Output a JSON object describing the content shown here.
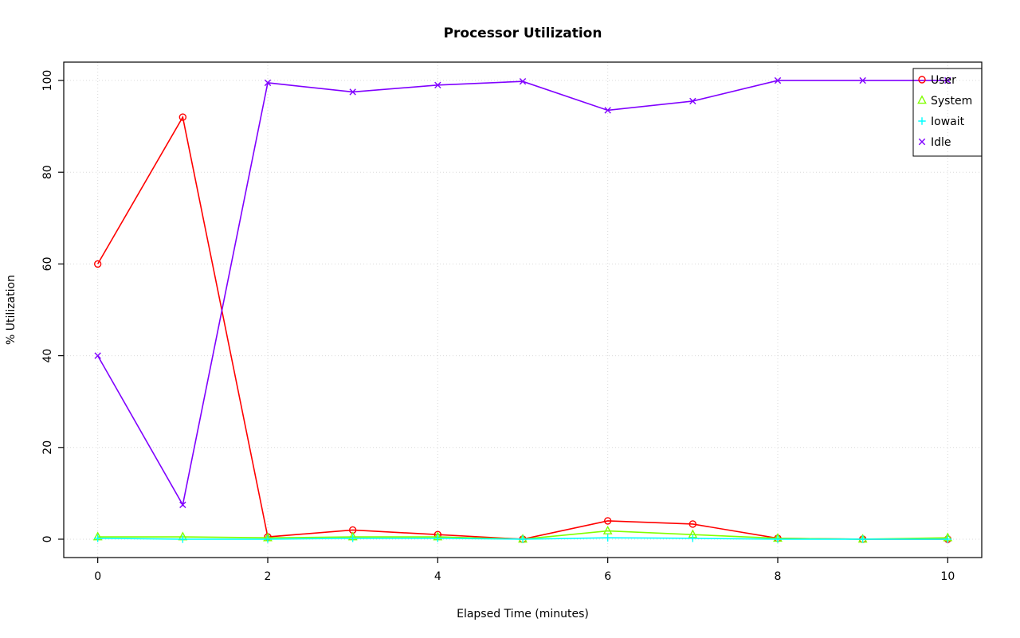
{
  "chart_data": {
    "type": "line",
    "title": "Processor Utilization",
    "xlabel": "Elapsed Time (minutes)",
    "ylabel": "% Utilization",
    "x": [
      0,
      1,
      2,
      3,
      4,
      5,
      6,
      7,
      8,
      9,
      10
    ],
    "xlim": [
      0,
      10
    ],
    "ylim": [
      0,
      100
    ],
    "xticks": [
      0,
      2,
      4,
      6,
      8,
      10
    ],
    "yticks": [
      0,
      20,
      40,
      60,
      80,
      100
    ],
    "grid": "dotted",
    "grid_color": "#d9d9d9",
    "legend_position": "top-right",
    "series": [
      {
        "name": "User",
        "color": "#FF0000",
        "marker": "circle",
        "values": [
          60,
          92,
          0.5,
          2,
          1,
          0,
          4,
          3.3,
          0.2,
          0,
          0
        ]
      },
      {
        "name": "System",
        "color": "#80FF00",
        "marker": "triangle",
        "values": [
          0.5,
          0.5,
          0.3,
          0.5,
          0.5,
          0,
          1.8,
          1,
          0.2,
          0,
          0.3
        ]
      },
      {
        "name": "Iowait",
        "color": "#00FFFF",
        "marker": "plus",
        "values": [
          0.2,
          0,
          0,
          0.2,
          0.2,
          0,
          0.3,
          0.2,
          0,
          0,
          0
        ]
      },
      {
        "name": "Idle",
        "color": "#8000FF",
        "marker": "x",
        "values": [
          40,
          7.5,
          99.5,
          97.5,
          99,
          99.8,
          93.5,
          95.5,
          100,
          100,
          100
        ]
      }
    ]
  }
}
